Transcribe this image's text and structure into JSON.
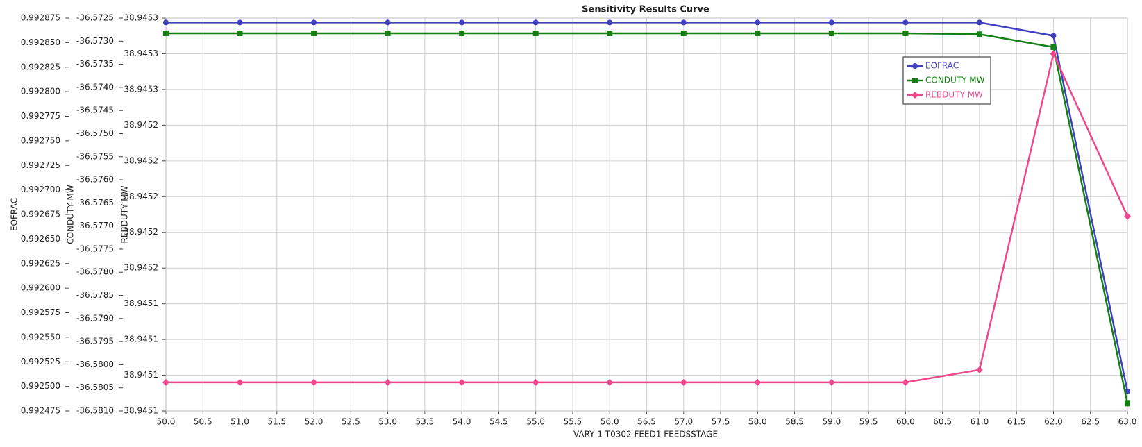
{
  "chart_data": {
    "type": "line",
    "title": "Sensitivity Results Curve",
    "xlabel": "VARY    1 T0302 FEED1 FEEDSSTAGE",
    "ylabel": "EOFRAC",
    "y2label": "CONDUTY MW",
    "y3label": "REBDUTY MW",
    "x": [
      50,
      51,
      52,
      53,
      54,
      55,
      56,
      57,
      58,
      59,
      60,
      61,
      62,
      63
    ],
    "xlim": [
      50,
      63
    ],
    "xticks": [
      {
        "value": 50,
        "label": "50.0"
      },
      {
        "value": 50.5,
        "label": "50.5"
      },
      {
        "value": 51,
        "label": "51.0"
      },
      {
        "value": 51.5,
        "label": "51.5"
      },
      {
        "value": 52,
        "label": "52.0"
      },
      {
        "value": 52.5,
        "label": "52.5"
      },
      {
        "value": 53,
        "label": "53.0"
      },
      {
        "value": 53.5,
        "label": "53.5"
      },
      {
        "value": 54,
        "label": "54.0"
      },
      {
        "value": 54.5,
        "label": "54.5"
      },
      {
        "value": 55,
        "label": "55.0"
      },
      {
        "value": 55.5,
        "label": "55.5"
      },
      {
        "value": 56,
        "label": "56.0"
      },
      {
        "value": 56.5,
        "label": "56.5"
      },
      {
        "value": 57,
        "label": "57.0"
      },
      {
        "value": 57.5,
        "label": "57.5"
      },
      {
        "value": 58,
        "label": "58.0"
      },
      {
        "value": 58.5,
        "label": "58.5"
      },
      {
        "value": 59,
        "label": "59.0"
      },
      {
        "value": 59.5,
        "label": "59.5"
      },
      {
        "value": 60,
        "label": "60.0"
      },
      {
        "value": 60.5,
        "label": "60.5"
      },
      {
        "value": 61,
        "label": "61.0"
      },
      {
        "value": 61.5,
        "label": "61.5"
      },
      {
        "value": 62,
        "label": "62.0"
      },
      {
        "value": 62.5,
        "label": "62.5"
      },
      {
        "value": 63,
        "label": "63.0"
      }
    ],
    "ylim": [
      0.992475,
      0.992875
    ],
    "yticks": [
      0.992475,
      {
        "value": 0.9925,
        "label": "0.992500"
      },
      0.992525,
      {
        "value": 0.99255,
        "label": "0.992550"
      },
      0.992575,
      {
        "value": 0.9926,
        "label": "0.992600"
      },
      0.992625,
      {
        "value": 0.99265,
        "label": "0.992650"
      },
      0.992675,
      {
        "value": 0.9927,
        "label": "0.992700"
      },
      0.992725,
      {
        "value": 0.99275,
        "label": "0.992750"
      },
      0.992775,
      {
        "value": 0.9928,
        "label": "0.992800"
      },
      0.992825,
      {
        "value": 0.99285,
        "label": "0.992850"
      },
      0.992875
    ],
    "y2lim": [
      -36.581,
      -36.5725
    ],
    "y2ticks": [
      {
        "value": -36.581,
        "label": "-36.5810"
      },
      -36.5805,
      {
        "value": -36.58,
        "label": "-36.5800"
      },
      -36.5795,
      {
        "value": -36.579,
        "label": "-36.5790"
      },
      -36.5785,
      {
        "value": -36.578,
        "label": "-36.5780"
      },
      -36.5775,
      {
        "value": -36.577,
        "label": "-36.5770"
      },
      -36.5765,
      {
        "value": -36.576,
        "label": "-36.5760"
      },
      -36.5755,
      {
        "value": -36.575,
        "label": "-36.5750"
      },
      -36.5745,
      {
        "value": -36.574,
        "label": "-36.5740"
      },
      -36.5735,
      {
        "value": -36.573,
        "label": "-36.5730"
      },
      -36.5725
    ],
    "y3lim": [
      38.94508,
      38.9453
    ],
    "y3ticks": [
      {
        "value": 38.94508,
        "label": "38.9451"
      },
      {
        "value": 38.9451,
        "label": "38.9451"
      },
      {
        "value": 38.94512,
        "label": "38.9451"
      },
      {
        "value": 38.94514,
        "label": "38.9451"
      },
      {
        "value": 38.94516,
        "label": "38.9452"
      },
      {
        "value": 38.94518,
        "label": "38.9452"
      },
      {
        "value": 38.9452,
        "label": "38.9452"
      },
      {
        "value": 38.94522,
        "label": "38.9452"
      },
      {
        "value": 38.94524,
        "label": "38.9452"
      },
      {
        "value": 38.94526,
        "label": "38.9453"
      },
      {
        "value": 38.94528,
        "label": "38.9453"
      },
      {
        "value": 38.9453,
        "label": "38.9453"
      }
    ],
    "grid": true,
    "legend": "upper right",
    "series": [
      {
        "name": "EOFRAC",
        "color": "#3f3fbf",
        "marker": "circle",
        "axis": "y",
        "values": [
          0.9928705,
          0.9928705,
          0.9928705,
          0.9928705,
          0.9928705,
          0.9928705,
          0.9928705,
          0.9928705,
          0.9928705,
          0.9928705,
          0.9928705,
          0.9928705,
          0.992857,
          0.992495
        ]
      },
      {
        "name": "CONDUTY MW",
        "color": "#128012",
        "marker": "square",
        "axis": "y2",
        "values": [
          -36.57283,
          -36.57283,
          -36.57283,
          -36.57283,
          -36.57283,
          -36.57283,
          -36.57283,
          -36.57283,
          -36.57283,
          -36.57283,
          -36.57283,
          -36.57285,
          -36.57313,
          -36.58084
        ]
      },
      {
        "name": "REBDUTY MW",
        "color": "#f0468c",
        "marker": "diamond",
        "axis": "y3",
        "values": [
          38.945096,
          38.945096,
          38.945096,
          38.945096,
          38.945096,
          38.945096,
          38.945096,
          38.945096,
          38.945096,
          38.945096,
          38.945096,
          38.945103,
          38.94528,
          38.945189
        ]
      }
    ]
  }
}
